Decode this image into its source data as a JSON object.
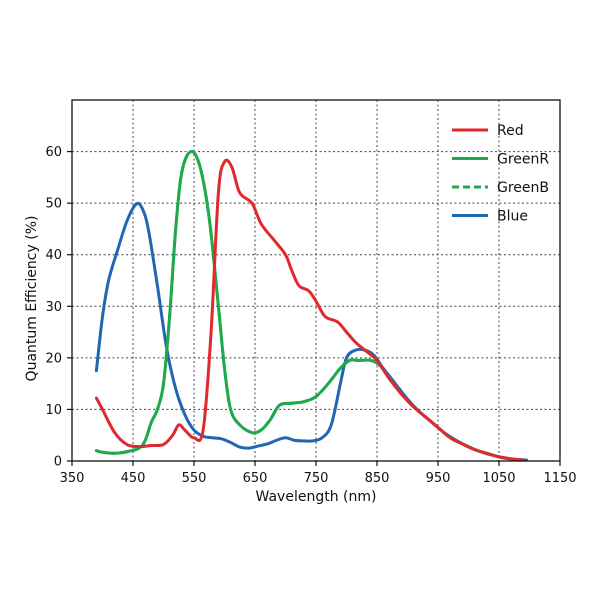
{
  "chart_data": {
    "type": "line",
    "xlabel": "Wavelength (nm)",
    "ylabel": "Quantum Efficiency (%)",
    "xlim": [
      350,
      1150
    ],
    "ylim": [
      0,
      70
    ],
    "xticks": [
      350,
      450,
      550,
      650,
      750,
      850,
      950,
      1050,
      1150
    ],
    "xtick_labels": [
      "350",
      "450",
      "550",
      "650",
      "750",
      "850",
      "950",
      "1050",
      "1150"
    ],
    "yticks": [
      0,
      10,
      20,
      30,
      40,
      50,
      60
    ],
    "ytick_labels": [
      "0",
      "10",
      "20",
      "30",
      "40",
      "50",
      "60"
    ],
    "grid": true,
    "legend_position": "top-right",
    "series": [
      {
        "name": "Red",
        "color": "#e0282e",
        "dash": "solid",
        "points": [
          [
            390,
            12.2
          ],
          [
            400,
            10
          ],
          [
            420,
            5.5
          ],
          [
            440,
            3.2
          ],
          [
            460,
            2.8
          ],
          [
            480,
            3
          ],
          [
            500,
            3.2
          ],
          [
            515,
            5
          ],
          [
            525,
            7
          ],
          [
            535,
            6
          ],
          [
            550,
            4.5
          ],
          [
            565,
            6
          ],
          [
            578,
            25
          ],
          [
            590,
            52
          ],
          [
            600,
            58
          ],
          [
            612,
            57
          ],
          [
            625,
            52
          ],
          [
            645,
            50
          ],
          [
            660,
            46
          ],
          [
            680,
            43
          ],
          [
            700,
            40
          ],
          [
            710,
            37
          ],
          [
            722,
            34
          ],
          [
            738,
            33
          ],
          [
            750,
            31
          ],
          [
            765,
            28
          ],
          [
            785,
            27
          ],
          [
            800,
            25
          ],
          [
            815,
            23
          ],
          [
            830,
            21.5
          ],
          [
            850,
            19.5
          ],
          [
            870,
            16
          ],
          [
            890,
            13
          ],
          [
            910,
            10.5
          ],
          [
            930,
            8.5
          ],
          [
            950,
            6.5
          ],
          [
            970,
            4.5
          ],
          [
            990,
            3.3
          ],
          [
            1010,
            2.2
          ],
          [
            1030,
            1.5
          ],
          [
            1050,
            0.8
          ],
          [
            1070,
            0.4
          ],
          [
            1090,
            0.2
          ]
        ]
      },
      {
        "name": "GreenR",
        "color": "#1eaa4a",
        "dash": "solid",
        "points": [
          [
            390,
            2
          ],
          [
            400,
            1.7
          ],
          [
            420,
            1.5
          ],
          [
            440,
            1.8
          ],
          [
            460,
            2.5
          ],
          [
            470,
            4
          ],
          [
            480,
            7.5
          ],
          [
            490,
            10
          ],
          [
            500,
            15
          ],
          [
            510,
            28
          ],
          [
            520,
            45
          ],
          [
            530,
            56
          ],
          [
            545,
            60
          ],
          [
            560,
            57
          ],
          [
            575,
            47
          ],
          [
            590,
            30
          ],
          [
            600,
            18
          ],
          [
            610,
            10
          ],
          [
            625,
            7
          ],
          [
            645,
            5.5
          ],
          [
            660,
            6
          ],
          [
            675,
            8
          ],
          [
            690,
            10.8
          ],
          [
            710,
            11.2
          ],
          [
            730,
            11.5
          ],
          [
            750,
            12.5
          ],
          [
            770,
            15
          ],
          [
            790,
            18
          ],
          [
            805,
            19.5
          ],
          [
            820,
            19.5
          ],
          [
            840,
            19.5
          ],
          [
            855,
            18.5
          ],
          [
            870,
            16
          ],
          [
            890,
            13
          ],
          [
            910,
            10.5
          ],
          [
            930,
            8.5
          ],
          [
            950,
            6.5
          ],
          [
            970,
            4.5
          ],
          [
            990,
            3.3
          ],
          [
            1010,
            2.2
          ],
          [
            1030,
            1.5
          ],
          [
            1050,
            0.8
          ],
          [
            1070,
            0.4
          ],
          [
            1090,
            0.2
          ]
        ]
      },
      {
        "name": "GreenB",
        "color": "#1eaa4a",
        "dash": "dashed",
        "points": [
          [
            390,
            2
          ],
          [
            400,
            1.7
          ],
          [
            420,
            1.5
          ],
          [
            440,
            1.8
          ],
          [
            460,
            2.5
          ],
          [
            470,
            4
          ],
          [
            480,
            7.5
          ],
          [
            490,
            10
          ],
          [
            500,
            15
          ],
          [
            510,
            28
          ],
          [
            520,
            45
          ],
          [
            530,
            56
          ],
          [
            545,
            60
          ],
          [
            560,
            57
          ],
          [
            575,
            47
          ],
          [
            590,
            30
          ],
          [
            600,
            18
          ],
          [
            610,
            10
          ],
          [
            625,
            7
          ],
          [
            645,
            5.5
          ],
          [
            660,
            6
          ],
          [
            675,
            8
          ],
          [
            690,
            10.8
          ],
          [
            710,
            11.2
          ],
          [
            730,
            11.5
          ],
          [
            750,
            12.5
          ],
          [
            770,
            15
          ],
          [
            790,
            18
          ],
          [
            805,
            19.5
          ],
          [
            820,
            19.5
          ],
          [
            840,
            19.5
          ],
          [
            855,
            18.5
          ],
          [
            870,
            16
          ],
          [
            890,
            13
          ],
          [
            910,
            10.5
          ],
          [
            930,
            8.5
          ],
          [
            950,
            6.5
          ],
          [
            970,
            4.5
          ],
          [
            990,
            3.3
          ],
          [
            1010,
            2.2
          ],
          [
            1030,
            1.5
          ],
          [
            1050,
            0.8
          ],
          [
            1070,
            0.4
          ],
          [
            1090,
            0.2
          ]
        ]
      },
      {
        "name": "Blue",
        "color": "#2166b0",
        "dash": "solid",
        "points": [
          [
            390,
            17.5
          ],
          [
            400,
            28
          ],
          [
            410,
            35
          ],
          [
            425,
            41
          ],
          [
            440,
            46.5
          ],
          [
            455,
            49.8
          ],
          [
            465,
            49
          ],
          [
            475,
            45
          ],
          [
            490,
            34
          ],
          [
            505,
            22
          ],
          [
            520,
            14
          ],
          [
            535,
            9
          ],
          [
            550,
            6
          ],
          [
            565,
            4.8
          ],
          [
            580,
            4.5
          ],
          [
            595,
            4.3
          ],
          [
            610,
            3.6
          ],
          [
            625,
            2.7
          ],
          [
            640,
            2.5
          ],
          [
            655,
            2.9
          ],
          [
            670,
            3.3
          ],
          [
            685,
            4
          ],
          [
            700,
            4.5
          ],
          [
            715,
            4
          ],
          [
            730,
            3.9
          ],
          [
            745,
            3.9
          ],
          [
            760,
            4.5
          ],
          [
            775,
            7
          ],
          [
            790,
            15
          ],
          [
            800,
            20
          ],
          [
            815,
            21.5
          ],
          [
            830,
            21.5
          ],
          [
            845,
            20.5
          ],
          [
            860,
            18
          ],
          [
            880,
            15
          ],
          [
            900,
            12
          ],
          [
            920,
            9.5
          ],
          [
            940,
            7.5
          ],
          [
            960,
            5.5
          ],
          [
            980,
            4
          ],
          [
            1000,
            2.8
          ],
          [
            1020,
            1.8
          ],
          [
            1040,
            1.1
          ],
          [
            1060,
            0.6
          ],
          [
            1080,
            0.3
          ],
          [
            1095,
            0.2
          ]
        ]
      }
    ]
  }
}
